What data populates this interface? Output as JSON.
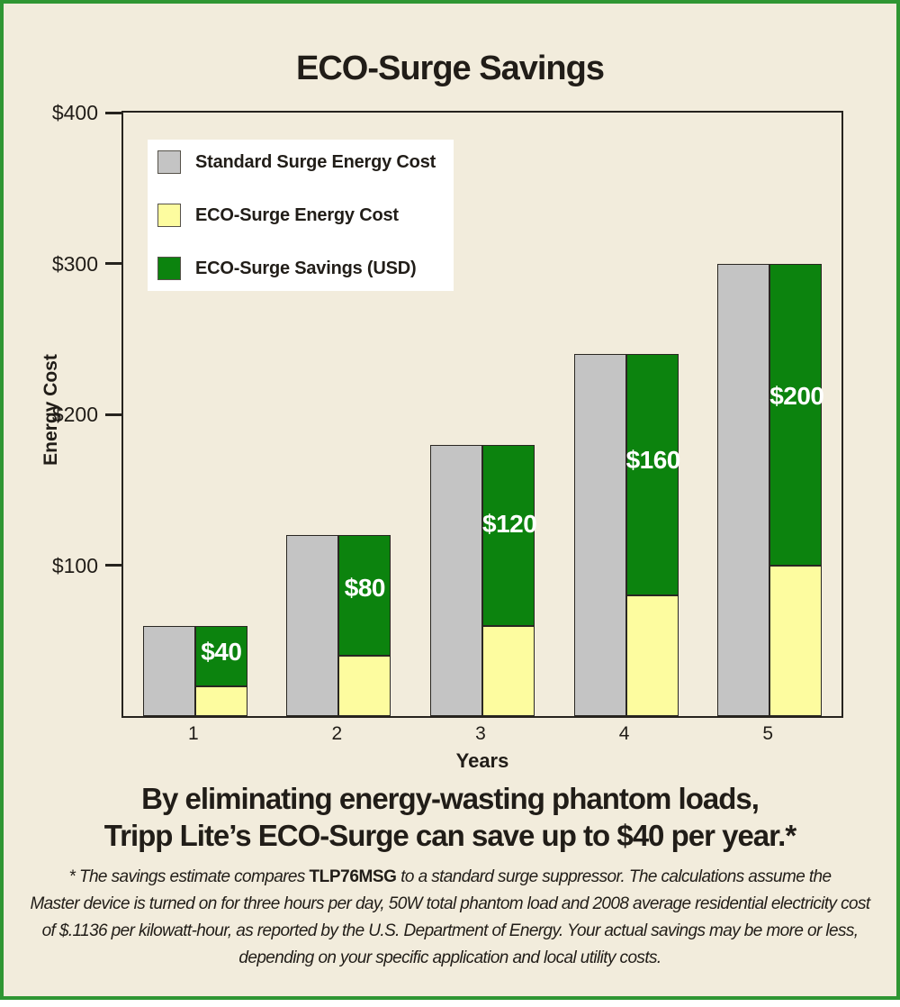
{
  "colors": {
    "frame_green": "#2f9633",
    "background": "#f2ecdc",
    "bar_gray": "#c4c4c4",
    "bar_yellow": "#fdfc9f",
    "bar_green": "#0c830e",
    "bar_outline": "#2a2722",
    "axis": "#26231e",
    "text": "#211d18",
    "value_label": "#ffffff",
    "legend_bg": "#ffffff"
  },
  "chart_data": {
    "type": "bar",
    "title": "ECO-Surge Savings",
    "xlabel": "Years",
    "ylabel": "Energy Cost",
    "categories": [
      "1",
      "2",
      "3",
      "4",
      "5"
    ],
    "ylim": [
      0,
      400
    ],
    "grid": false,
    "legend_position": "top-left",
    "bar_arrangement": "per year: one plain gray bar (standard cost) beside one stacked bar (yellow eco cost on bottom, green savings on top)",
    "yticks": [
      {
        "value": 100,
        "label": "$100"
      },
      {
        "value": 200,
        "label": "$200"
      },
      {
        "value": 300,
        "label": "$300"
      },
      {
        "value": 400,
        "label": "$400"
      }
    ],
    "series": [
      {
        "name": "Standard Surge Energy Cost",
        "color": "bar_gray",
        "stack": "none",
        "values": [
          60,
          120,
          180,
          240,
          300
        ]
      },
      {
        "name": "ECO-Surge Energy Cost",
        "color": "bar_yellow",
        "stack": "eco",
        "values": [
          20,
          40,
          60,
          80,
          100
        ]
      },
      {
        "name": "ECO-Surge Savings (USD)",
        "color": "bar_green",
        "stack": "eco",
        "values": [
          40,
          80,
          120,
          160,
          200
        ],
        "labels": [
          "$40",
          "$80",
          "$120",
          "$160",
          "$200"
        ]
      }
    ]
  },
  "headline": {
    "line1": "By eliminating energy-wasting phantom loads,",
    "line2": "Tripp Lite’s ECO-Surge can save up to $40 per year.*"
  },
  "footnote": {
    "line1_pre": "* The savings estimate compares ",
    "model": "TLP76MSG",
    "line1_post": " to a standard surge suppressor. The calculations assume the",
    "line2": "Master device is turned on for three hours per day, 50W total phantom load and 2008 average residential electricity cost",
    "line3": "of $.1136 per kilowatt-hour, as reported by the U.S. Department of Energy. Your actual savings may be more or less,",
    "line4": "depending on your specific application and local utility costs."
  }
}
